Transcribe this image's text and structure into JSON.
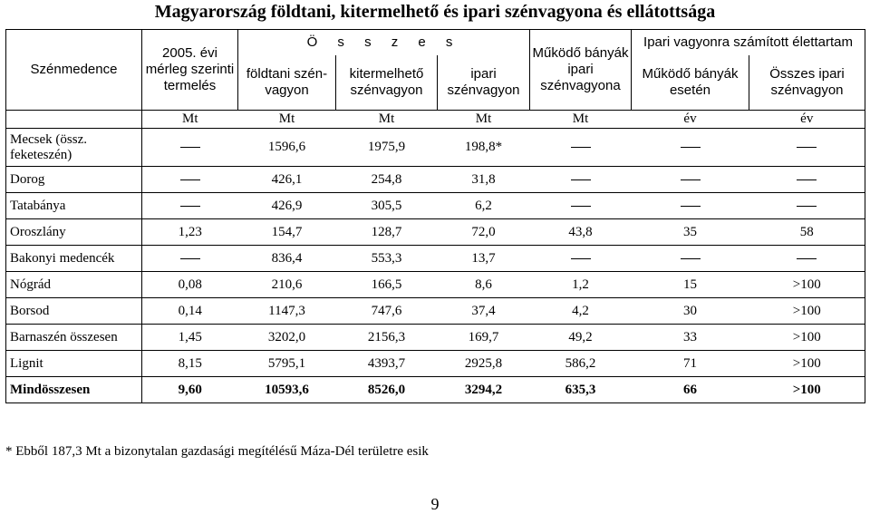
{
  "title": "Magyarország földtani, kitermelhető és ipari szénvagyona és ellátottsága",
  "header": {
    "col0": "Szénmedence",
    "col1": "2005. évi mérleg szerinti termelés",
    "group1": "Ö s s z e s",
    "col2": "földtani szén-vagyon",
    "col3": "kitermelhető szénvagyon",
    "col4": "ipari szénvagyon",
    "col5": "Működő bányák ipari szénvagyona",
    "group2": "Ipari vagyonra számított élettartam",
    "col6": "Működő bányák esetén",
    "col7": "Összes ipari szénvagyon",
    "units": [
      "Mt",
      "Mt",
      "Mt",
      "Mt",
      "Mt",
      "év",
      "év"
    ]
  },
  "rows": [
    {
      "name": "Mecsek (össz. feketeszén)",
      "v": [
        "–",
        "1596,6",
        "1975,9",
        "198,8*",
        "–",
        "–",
        "–"
      ]
    },
    {
      "name": "Dorog",
      "v": [
        "–",
        "426,1",
        "254,8",
        "31,8",
        "–",
        "–",
        "–"
      ]
    },
    {
      "name": "Tatabánya",
      "v": [
        "–",
        "426,9",
        "305,5",
        "6,2",
        "–",
        "–",
        "–"
      ]
    },
    {
      "name": "Oroszlány",
      "v": [
        "1,23",
        "154,7",
        "128,7",
        "72,0",
        "43,8",
        "35",
        "58"
      ]
    },
    {
      "name": "Bakonyi medencék",
      "v": [
        "–",
        "836,4",
        "553,3",
        "13,7",
        "–",
        "–",
        "–"
      ]
    },
    {
      "name": "Nógrád",
      "v": [
        "0,08",
        "210,6",
        "166,5",
        "8,6",
        "1,2",
        "15",
        ">100"
      ]
    },
    {
      "name": "Borsod",
      "v": [
        "0,14",
        "1147,3",
        "747,6",
        "37,4",
        "4,2",
        "30",
        ">100"
      ]
    },
    {
      "name": "Barnaszén összesen",
      "v": [
        "1,45",
        "3202,0",
        "2156,3",
        "169,7",
        "49,2",
        "33",
        ">100"
      ]
    },
    {
      "name": "Lignit",
      "v": [
        "8,15",
        "5795,1",
        "4393,7",
        "2925,8",
        "586,2",
        "71",
        ">100"
      ]
    },
    {
      "name": "Mindösszesen",
      "v": [
        "9,60",
        "10593,6",
        "8526,0",
        "3294,2",
        "635,3",
        "66",
        ">100"
      ]
    }
  ],
  "footnote": "* Ebből 187,3 Mt a bizonytalan gazdasági megítélésű Máza-Dél területre esik",
  "page_number": "9"
}
